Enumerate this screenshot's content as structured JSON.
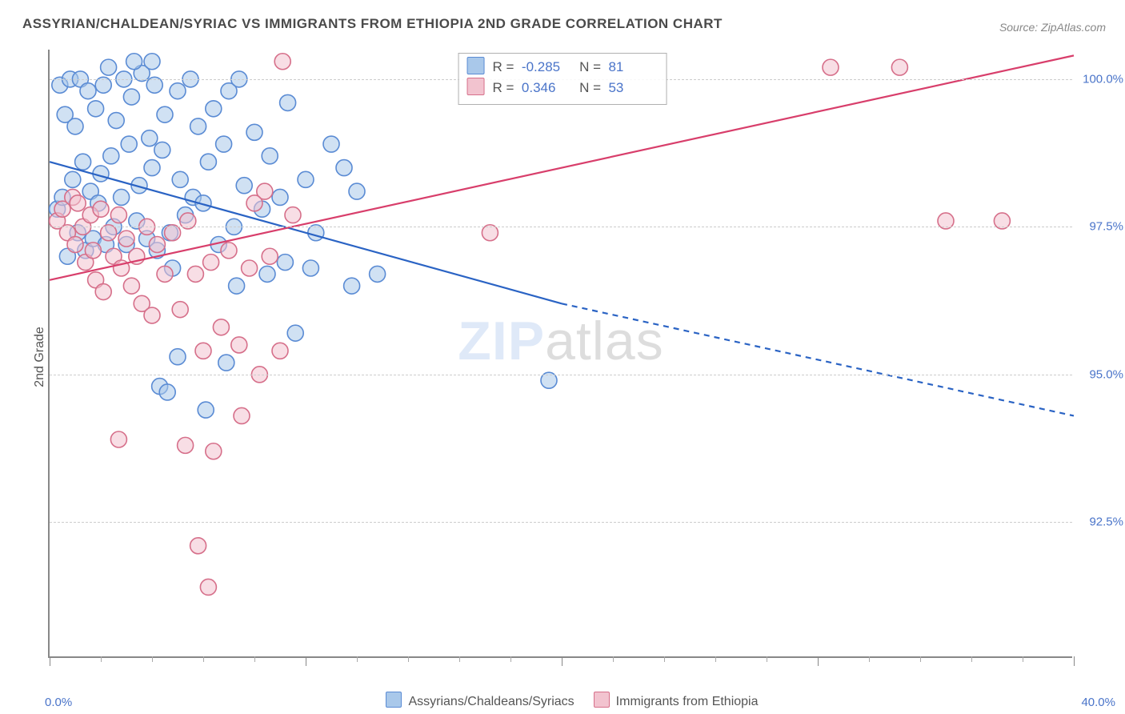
{
  "title": "ASSYRIAN/CHALDEAN/SYRIAC VS IMMIGRANTS FROM ETHIOPIA 2ND GRADE CORRELATION CHART",
  "source": "Source: ZipAtlas.com",
  "ylabel": "2nd Grade",
  "watermark_a": "ZIP",
  "watermark_b": "atlas",
  "chart": {
    "type": "scatter-with-regression",
    "plot_bg": "#ffffff",
    "grid_color": "#cccccc",
    "axis_color": "#888888",
    "tick_label_color": "#4a74c9",
    "xlim": [
      0.0,
      40.0
    ],
    "ylim": [
      90.2,
      100.5
    ],
    "y_gridlines": [
      92.5,
      95.0,
      97.5,
      100.0
    ],
    "y_tick_labels": [
      "92.5%",
      "95.0%",
      "97.5%",
      "100.0%"
    ],
    "x_major_ticks": [
      0,
      10,
      20,
      30,
      40
    ],
    "x_minor_ticks": [
      2,
      4,
      6,
      8,
      12,
      14,
      16,
      18,
      22,
      24,
      26,
      28,
      32,
      34,
      36,
      38
    ],
    "x_min_label": "0.0%",
    "x_max_label": "40.0%",
    "marker_radius": 10,
    "marker_stroke_width": 1.6,
    "line_width": 2.2,
    "series": [
      {
        "key": "assyrian",
        "label": "Assyrians/Chaldeans/Syriacs",
        "R": "-0.285",
        "N": "81",
        "fill": "#a9c8ea",
        "stroke": "#5a8bd4",
        "line_color": "#2a63c4",
        "trend_solid": [
          [
            0.0,
            98.6
          ],
          [
            20.0,
            96.2
          ]
        ],
        "trend_dashed": [
          [
            20.0,
            96.2
          ],
          [
            40.0,
            94.3
          ]
        ],
        "points": [
          [
            0.3,
            97.8
          ],
          [
            0.4,
            99.9
          ],
          [
            0.5,
            98.0
          ],
          [
            0.6,
            99.4
          ],
          [
            0.7,
            97.0
          ],
          [
            0.8,
            100.0
          ],
          [
            0.9,
            98.3
          ],
          [
            1.0,
            99.2
          ],
          [
            1.1,
            97.4
          ],
          [
            1.2,
            100.0
          ],
          [
            1.3,
            98.6
          ],
          [
            1.4,
            97.1
          ],
          [
            1.5,
            99.8
          ],
          [
            1.6,
            98.1
          ],
          [
            1.7,
            97.3
          ],
          [
            1.8,
            99.5
          ],
          [
            1.9,
            97.9
          ],
          [
            2.0,
            98.4
          ],
          [
            2.1,
            99.9
          ],
          [
            2.2,
            97.2
          ],
          [
            2.3,
            100.2
          ],
          [
            2.4,
            98.7
          ],
          [
            2.5,
            97.5
          ],
          [
            2.6,
            99.3
          ],
          [
            2.8,
            98.0
          ],
          [
            2.9,
            100.0
          ],
          [
            3.0,
            97.2
          ],
          [
            3.1,
            98.9
          ],
          [
            3.2,
            99.7
          ],
          [
            3.4,
            97.6
          ],
          [
            3.5,
            98.2
          ],
          [
            3.6,
            100.1
          ],
          [
            3.8,
            97.3
          ],
          [
            3.9,
            99.0
          ],
          [
            4.0,
            98.5
          ],
          [
            4.1,
            99.9
          ],
          [
            4.2,
            97.1
          ],
          [
            4.4,
            98.8
          ],
          [
            4.5,
            99.4
          ],
          [
            4.7,
            97.4
          ],
          [
            4.8,
            96.8
          ],
          [
            5.0,
            99.8
          ],
          [
            5.1,
            98.3
          ],
          [
            5.3,
            97.7
          ],
          [
            5.5,
            100.0
          ],
          [
            5.6,
            98.0
          ],
          [
            5.8,
            99.2
          ],
          [
            6.0,
            97.9
          ],
          [
            6.2,
            98.6
          ],
          [
            6.4,
            99.5
          ],
          [
            6.6,
            97.2
          ],
          [
            6.8,
            98.9
          ],
          [
            7.0,
            99.8
          ],
          [
            7.2,
            97.5
          ],
          [
            7.4,
            100.0
          ],
          [
            7.6,
            98.2
          ],
          [
            8.0,
            99.1
          ],
          [
            8.3,
            97.8
          ],
          [
            8.6,
            98.7
          ],
          [
            9.0,
            98.0
          ],
          [
            9.3,
            99.6
          ],
          [
            9.6,
            95.7
          ],
          [
            10.0,
            98.3
          ],
          [
            10.4,
            97.4
          ],
          [
            11.0,
            98.9
          ],
          [
            11.5,
            98.5
          ],
          [
            12.0,
            98.1
          ],
          [
            4.3,
            94.8
          ],
          [
            4.6,
            94.7
          ],
          [
            5.0,
            95.3
          ],
          [
            6.1,
            94.4
          ],
          [
            6.9,
            95.2
          ],
          [
            7.3,
            96.5
          ],
          [
            8.5,
            96.7
          ],
          [
            9.2,
            96.9
          ],
          [
            10.2,
            96.8
          ],
          [
            11.8,
            96.5
          ],
          [
            12.8,
            96.7
          ],
          [
            3.3,
            100.3
          ],
          [
            4.0,
            100.3
          ],
          [
            19.5,
            94.9
          ]
        ]
      },
      {
        "key": "ethiopia",
        "label": "Immigrants from Ethiopia",
        "R": "0.346",
        "N": "53",
        "fill": "#f2c3cf",
        "stroke": "#d66f8a",
        "line_color": "#d83e6b",
        "trend_solid": [
          [
            0.0,
            96.6
          ],
          [
            40.0,
            100.4
          ]
        ],
        "trend_dashed": null,
        "points": [
          [
            0.3,
            97.6
          ],
          [
            0.5,
            97.8
          ],
          [
            0.7,
            97.4
          ],
          [
            0.9,
            98.0
          ],
          [
            1.0,
            97.2
          ],
          [
            1.1,
            97.9
          ],
          [
            1.3,
            97.5
          ],
          [
            1.4,
            96.9
          ],
          [
            1.6,
            97.7
          ],
          [
            1.7,
            97.1
          ],
          [
            1.8,
            96.6
          ],
          [
            2.0,
            97.8
          ],
          [
            2.1,
            96.4
          ],
          [
            2.3,
            97.4
          ],
          [
            2.5,
            97.0
          ],
          [
            2.7,
            97.7
          ],
          [
            2.8,
            96.8
          ],
          [
            3.0,
            97.3
          ],
          [
            3.2,
            96.5
          ],
          [
            3.4,
            97.0
          ],
          [
            3.6,
            96.2
          ],
          [
            3.8,
            97.5
          ],
          [
            4.0,
            96.0
          ],
          [
            4.2,
            97.2
          ],
          [
            4.5,
            96.7
          ],
          [
            4.8,
            97.4
          ],
          [
            5.1,
            96.1
          ],
          [
            5.4,
            97.6
          ],
          [
            5.7,
            96.7
          ],
          [
            6.0,
            95.4
          ],
          [
            6.3,
            96.9
          ],
          [
            6.7,
            95.8
          ],
          [
            7.0,
            97.1
          ],
          [
            7.4,
            95.5
          ],
          [
            7.8,
            96.8
          ],
          [
            8.2,
            95.0
          ],
          [
            8.6,
            97.0
          ],
          [
            9.0,
            95.4
          ],
          [
            9.5,
            97.7
          ],
          [
            5.3,
            93.8
          ],
          [
            6.4,
            93.7
          ],
          [
            2.7,
            93.9
          ],
          [
            5.8,
            92.1
          ],
          [
            6.2,
            91.4
          ],
          [
            8.4,
            98.1
          ],
          [
            9.1,
            100.3
          ],
          [
            17.2,
            97.4
          ],
          [
            30.5,
            100.2
          ],
          [
            33.2,
            100.2
          ],
          [
            35.0,
            97.6
          ],
          [
            37.2,
            97.6
          ],
          [
            7.5,
            94.3
          ],
          [
            8.0,
            97.9
          ]
        ]
      }
    ],
    "bottom_legend": [
      {
        "label": "Assyrians/Chaldeans/Syriacs",
        "fill": "#a9c8ea",
        "stroke": "#5a8bd4"
      },
      {
        "label": "Immigrants from Ethiopia",
        "fill": "#f2c3cf",
        "stroke": "#d66f8a"
      }
    ]
  }
}
